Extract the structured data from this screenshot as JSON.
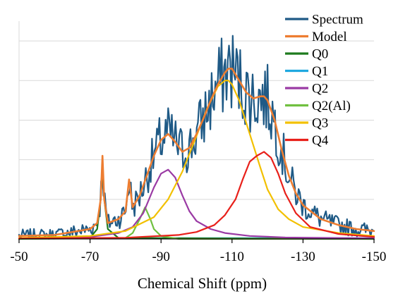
{
  "chart_data": {
    "type": "line",
    "title": "",
    "xlabel": "Chemical Shift (ppm)",
    "ylabel": "",
    "xlim": [
      -50,
      -150
    ],
    "x_reversed": true,
    "xticks": [
      -50,
      -70,
      -90,
      -110,
      -130,
      -150
    ],
    "xtick_labels": [
      "-50",
      "-70",
      "-90",
      "-110",
      "-130",
      "-150"
    ],
    "ylim": [
      0,
      1.1
    ],
    "y_gridlines": [
      0.2,
      0.4,
      0.6,
      0.8,
      1.0
    ],
    "y_ticks_shown": false,
    "legend_position": "top-right",
    "series": [
      {
        "name": "Spectrum",
        "color": "#1f5a86",
        "kind": "noisy-data",
        "note_values": "Experimental NMR spectrum; approximates Model plus noise",
        "sample_x": [
          -50,
          -60,
          -70,
          -73.5,
          -80,
          -85,
          -90,
          -95,
          -100,
          -105,
          -110,
          -113,
          -118,
          -125,
          -130,
          -140,
          -150
        ],
        "sample_y": [
          0.02,
          0.03,
          0.05,
          0.36,
          0.14,
          0.26,
          0.45,
          0.44,
          0.55,
          0.75,
          0.8,
          0.78,
          0.6,
          0.4,
          0.25,
          0.1,
          0.05
        ]
      },
      {
        "name": "Model",
        "color": "#ed7d31",
        "x": [
          -50,
          -60,
          -70,
          -72,
          -73,
          -73.5,
          -74,
          -75,
          -78,
          -80,
          -81,
          -82,
          -84,
          -86,
          -88,
          -90,
          -92,
          -94,
          -96,
          -98,
          -100,
          -102,
          -104,
          -106,
          -108,
          -109,
          -110,
          -112,
          -114,
          -116,
          -118,
          -119,
          -120,
          -122,
          -124,
          -126,
          -128,
          -130,
          -135,
          -140,
          -145,
          -150
        ],
        "y": [
          0.015,
          0.02,
          0.05,
          0.08,
          0.2,
          0.42,
          0.2,
          0.08,
          0.1,
          0.14,
          0.3,
          0.16,
          0.22,
          0.32,
          0.42,
          0.5,
          0.53,
          0.49,
          0.44,
          0.46,
          0.53,
          0.61,
          0.7,
          0.78,
          0.84,
          0.86,
          0.86,
          0.8,
          0.74,
          0.71,
          0.72,
          0.72,
          0.7,
          0.6,
          0.45,
          0.32,
          0.23,
          0.17,
          0.1,
          0.07,
          0.05,
          0.04
        ]
      },
      {
        "name": "Q0",
        "color": "#1e7b1e",
        "x": [
          -50,
          -70,
          -72,
          -73,
          -73.5,
          -74,
          -75,
          -78,
          -150
        ],
        "y": [
          0,
          0.005,
          0.05,
          0.2,
          0.36,
          0.2,
          0.05,
          0.005,
          0
        ]
      },
      {
        "name": "Q1",
        "color": "#1fa8e0",
        "x": [
          -50,
          -150
        ],
        "y": [
          0.004,
          0.004
        ]
      },
      {
        "name": "Q2",
        "color": "#9a3aa4",
        "x": [
          -50,
          -70,
          -78,
          -82,
          -85,
          -88,
          -90,
          -92,
          -94,
          -96,
          -98,
          -100,
          -104,
          -108,
          -115,
          -125,
          -150
        ],
        "y": [
          0.003,
          0.01,
          0.03,
          0.06,
          0.13,
          0.26,
          0.33,
          0.35,
          0.31,
          0.22,
          0.14,
          0.09,
          0.05,
          0.03,
          0.015,
          0.007,
          0.003
        ]
      },
      {
        "name": "Q2(Al)",
        "color": "#70c040",
        "x": [
          -50,
          -80,
          -82,
          -84,
          -85.5,
          -87,
          -88,
          -90,
          -95,
          -150
        ],
        "y": [
          0,
          0.005,
          0.03,
          0.1,
          0.16,
          0.1,
          0.05,
          0.015,
          0,
          0
        ]
      },
      {
        "name": "Q3",
        "color": "#f2c000",
        "x": [
          -50,
          -70,
          -80,
          -88,
          -92,
          -96,
          -100,
          -103,
          -106,
          -108,
          -109,
          -110,
          -112,
          -115,
          -118,
          -120,
          -123,
          -126,
          -130,
          -140,
          -150
        ],
        "y": [
          0.005,
          0.015,
          0.04,
          0.11,
          0.2,
          0.34,
          0.52,
          0.66,
          0.77,
          0.8,
          0.8,
          0.78,
          0.7,
          0.53,
          0.36,
          0.25,
          0.15,
          0.1,
          0.06,
          0.03,
          0.015
        ]
      },
      {
        "name": "Q4",
        "color": "#e8201a",
        "x": [
          -50,
          -80,
          -95,
          -100,
          -105,
          -108,
          -111,
          -113,
          -115,
          -117,
          -119,
          -121,
          -123,
          -125,
          -128,
          -132,
          -140,
          -150
        ],
        "y": [
          0.002,
          0.006,
          0.02,
          0.035,
          0.07,
          0.12,
          0.2,
          0.3,
          0.39,
          0.42,
          0.44,
          0.41,
          0.33,
          0.23,
          0.13,
          0.06,
          0.025,
          0.01
        ]
      }
    ]
  }
}
